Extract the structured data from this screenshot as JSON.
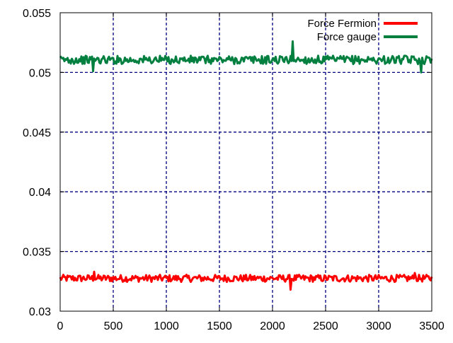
{
  "chart_data": {
    "type": "line",
    "title": "",
    "xlabel": "",
    "ylabel": "",
    "xlim": [
      0,
      3500
    ],
    "ylim": [
      0.03,
      0.055
    ],
    "x_ticks": [
      0,
      500,
      1000,
      1500,
      2000,
      2500,
      3000,
      3500
    ],
    "x_tick_labels": [
      "0",
      "500",
      "1000",
      "1500",
      "2000",
      "2500",
      "3000",
      "3500"
    ],
    "y_ticks": [
      0.03,
      0.035,
      0.04,
      0.045,
      0.05,
      0.055
    ],
    "y_tick_labels": [
      "0.03",
      "0.035",
      "0.04",
      "0.045",
      "0.05",
      "0.055"
    ],
    "grid": true,
    "grid_style": "dashed",
    "grid_color": "#00007f",
    "legend_position": "top-right",
    "x_step": 10,
    "series": [
      {
        "name": "Force Fermion",
        "color": "#ff0000",
        "x_start": 0,
        "x_end": 3500,
        "mean": 0.03275,
        "noise_amplitude": 0.0003,
        "notable_points": [
          {
            "x": 320,
            "y": 0.0333
          },
          {
            "x": 2170,
            "y": 0.0318
          },
          {
            "x": 3340,
            "y": 0.0332
          }
        ]
      },
      {
        "name": "Force gauge",
        "color": "#007f3f",
        "x_start": 0,
        "x_end": 3500,
        "mean": 0.05105,
        "noise_amplitude": 0.00035,
        "notable_points": [
          {
            "x": 310,
            "y": 0.0501
          },
          {
            "x": 2190,
            "y": 0.0526
          },
          {
            "x": 3400,
            "y": 0.05
          }
        ]
      }
    ]
  }
}
